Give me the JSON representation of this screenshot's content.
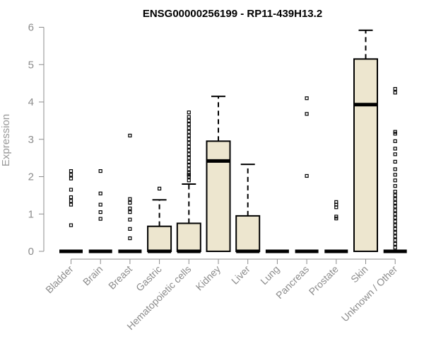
{
  "chart_data": {
    "type": "box",
    "title": "ENSG00000256199 - RP11-439H13.2",
    "ylabel": "Expression",
    "xlabel": "",
    "ylim": [
      0,
      6
    ],
    "yticks": [
      "0",
      "1",
      "2",
      "3",
      "4",
      "5",
      "6"
    ],
    "categories": [
      "Bladder",
      "Brain",
      "Breast",
      "Gastric",
      "Hematopoietic cells",
      "Kidney",
      "Liver",
      "Lung",
      "Pancreas",
      "Prostate",
      "Skin",
      "Unknown / Other"
    ],
    "box_fill": "#ede6cf",
    "boxes": [
      {
        "q1": 0,
        "median": 0,
        "q3": 0,
        "lower": 0,
        "upper": 0,
        "outliers": [
          0.7,
          1.25,
          1.35,
          1.45,
          1.65,
          1.95,
          2.05,
          2.15
        ]
      },
      {
        "q1": 0,
        "median": 0,
        "q3": 0,
        "lower": 0,
        "upper": 0,
        "outliers": [
          0.87,
          1.05,
          1.25,
          1.55,
          2.15
        ]
      },
      {
        "q1": 0,
        "median": 0,
        "q3": 0,
        "lower": 0,
        "upper": 0,
        "outliers": [
          0.35,
          0.6,
          0.85,
          1.05,
          1.15,
          1.3,
          1.4,
          3.1
        ]
      },
      {
        "q1": 0,
        "median": 0,
        "q3": 0.67,
        "lower": 0,
        "upper": 1.38,
        "outliers": [
          1.68
        ]
      },
      {
        "q1": 0,
        "median": 0,
        "q3": 0.75,
        "lower": 0,
        "upper": 1.8,
        "outliers": [
          1.9,
          2.0,
          2.05,
          2.1,
          2.2,
          2.3,
          2.4,
          2.5,
          2.6,
          2.7,
          2.8,
          2.9,
          3.0,
          3.1,
          3.2,
          3.3,
          3.4,
          3.5,
          3.6,
          3.72
        ]
      },
      {
        "q1": 0,
        "median": 2.42,
        "q3": 2.95,
        "lower": 0,
        "upper": 4.15,
        "outliers": []
      },
      {
        "q1": 0,
        "median": 0,
        "q3": 0.95,
        "lower": 0,
        "upper": 2.33,
        "outliers": []
      },
      {
        "q1": 0,
        "median": 0,
        "q3": 0,
        "lower": 0,
        "upper": 0,
        "outliers": []
      },
      {
        "q1": 0,
        "median": 0,
        "q3": 0,
        "lower": 0,
        "upper": 0,
        "outliers": [
          2.02,
          3.68,
          4.1
        ]
      },
      {
        "q1": 0,
        "median": 0,
        "q3": 0,
        "lower": 0,
        "upper": 0,
        "outliers": [
          0.88,
          0.93,
          1.18,
          1.25,
          1.32
        ]
      },
      {
        "q1": 0,
        "median": 3.93,
        "q3": 5.15,
        "lower": 0,
        "upper": 5.92,
        "outliers": []
      },
      {
        "q1": 0,
        "median": 0,
        "q3": 0,
        "lower": 0,
        "upper": 0,
        "outliers": [
          0.1,
          0.2,
          0.3,
          0.4,
          0.5,
          0.6,
          0.7,
          0.8,
          0.9,
          1.0,
          1.1,
          1.2,
          1.3,
          1.4,
          1.5,
          1.6,
          1.75,
          1.9,
          2.05,
          2.2,
          2.4,
          2.6,
          2.75,
          2.95,
          3.15,
          3.2,
          4.25,
          4.35
        ]
      }
    ]
  }
}
